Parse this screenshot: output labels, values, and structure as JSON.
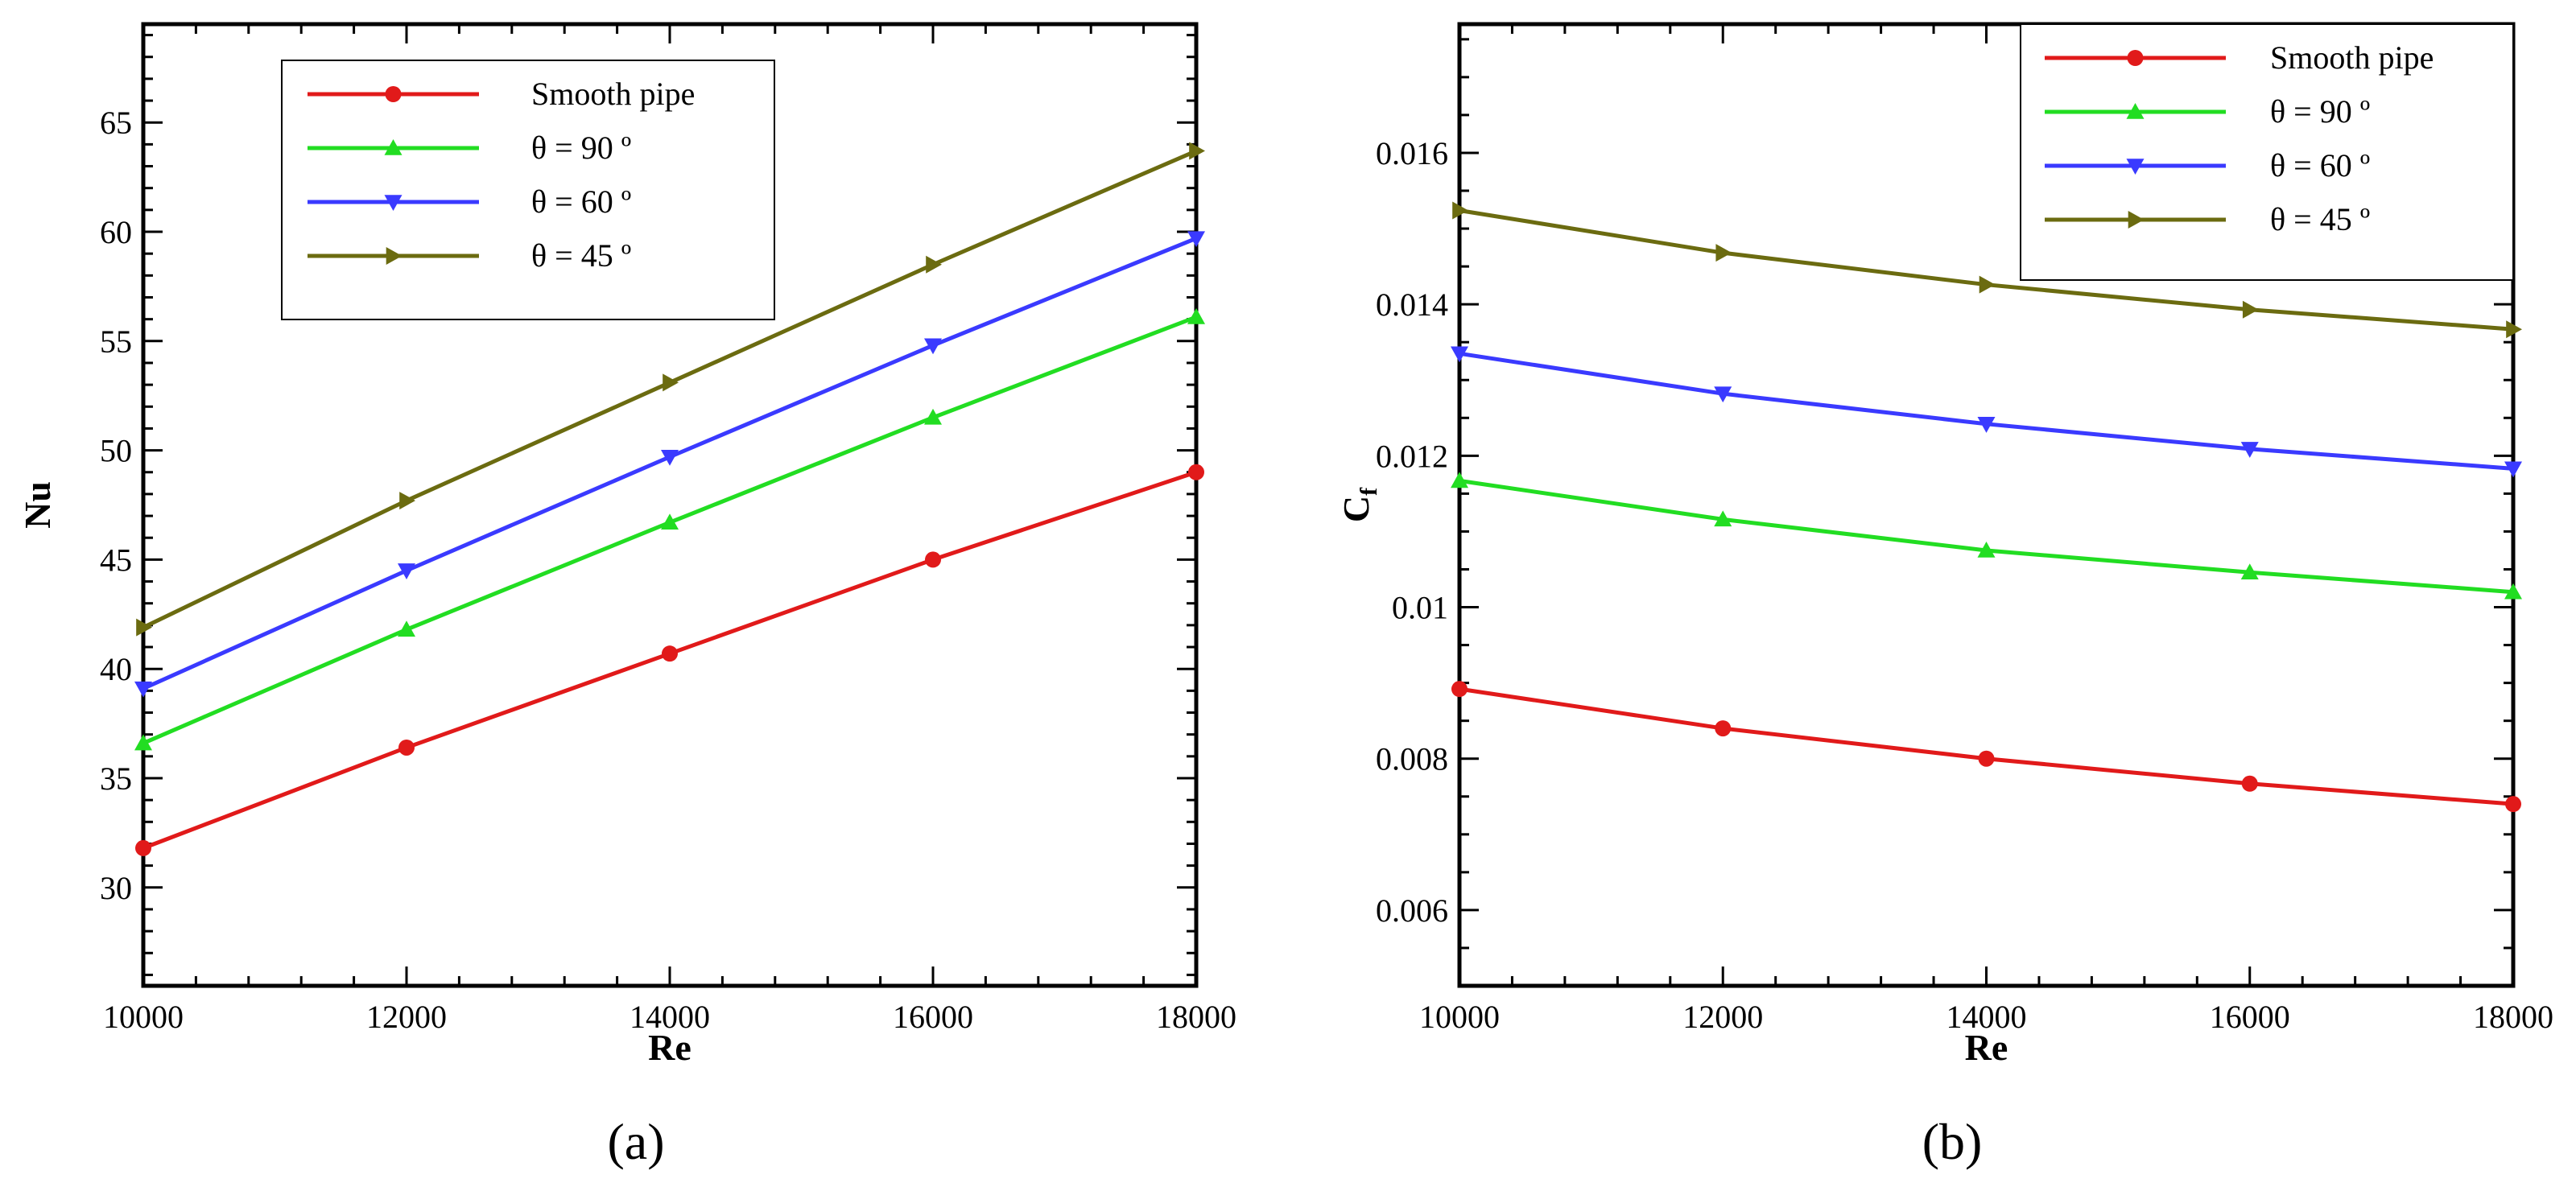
{
  "chart_data": [
    {
      "type": "line",
      "panel_label": "(a)",
      "x": [
        10000,
        12000,
        14000,
        16000,
        18000
      ],
      "xlabel": "Re",
      "ylabel": "Nu",
      "xlim": [
        10000,
        18000
      ],
      "ylim": [
        25.5,
        69.5
      ],
      "xticks": [
        10000,
        12000,
        14000,
        16000,
        18000
      ],
      "xtick_labels": [
        "10000",
        "12000",
        "14000",
        "16000",
        "18000"
      ],
      "yticks": [
        30,
        35,
        40,
        45,
        50,
        55,
        60,
        65
      ],
      "ytick_labels": [
        "30",
        "35",
        "40",
        "45",
        "50",
        "55",
        "60",
        "65"
      ],
      "legend_position": "top-center",
      "series": [
        {
          "name": "Smooth pipe",
          "color": "#e11a1a",
          "marker": "circle",
          "values": [
            31.8,
            36.4,
            40.7,
            45.0,
            49.0
          ]
        },
        {
          "name": "θ = 90 º",
          "color": "#22dd22",
          "marker": "triangle-up",
          "values": [
            36.6,
            41.8,
            46.7,
            51.5,
            56.1
          ]
        },
        {
          "name": "θ = 60 º",
          "color": "#3a3aff",
          "marker": "triangle-down",
          "values": [
            39.1,
            44.5,
            49.7,
            54.8,
            59.7
          ]
        },
        {
          "name": "θ = 45 º",
          "color": "#6b6b10",
          "marker": "triangle-right",
          "values": [
            41.9,
            47.7,
            53.1,
            58.5,
            63.7
          ]
        }
      ]
    },
    {
      "type": "line",
      "panel_label": "(b)",
      "x": [
        10000,
        12000,
        14000,
        16000,
        18000
      ],
      "xlabel": "Re",
      "ylabel": "C",
      "ylabel_subscript": "f",
      "xlim": [
        10000,
        18000
      ],
      "ylim": [
        0.005,
        0.0177
      ],
      "xticks": [
        10000,
        12000,
        14000,
        16000,
        18000
      ],
      "xtick_labels": [
        "10000",
        "12000",
        "14000",
        "16000",
        "18000"
      ],
      "yticks": [
        0.006,
        0.008,
        0.01,
        0.012,
        0.014,
        0.016
      ],
      "ytick_labels": [
        "0.006",
        "0.008",
        "0.01",
        "0.012",
        "0.014",
        "0.016"
      ],
      "legend_position": "top-right",
      "series": [
        {
          "name": "Smooth pipe",
          "color": "#e11a1a",
          "marker": "circle",
          "values": [
            0.00892,
            0.0084,
            0.008,
            0.00767,
            0.0074
          ]
        },
        {
          "name": "θ = 90 º",
          "color": "#22dd22",
          "marker": "triangle-up",
          "values": [
            0.01167,
            0.01116,
            0.01075,
            0.01046,
            0.0102
          ]
        },
        {
          "name": "θ = 60 º",
          "color": "#3a3aff",
          "marker": "triangle-down",
          "values": [
            0.01335,
            0.01282,
            0.01242,
            0.01209,
            0.01183
          ]
        },
        {
          "name": "θ = 45 º",
          "color": "#6b6b10",
          "marker": "triangle-right",
          "values": [
            0.01524,
            0.01468,
            0.01426,
            0.01393,
            0.01367
          ]
        }
      ]
    }
  ]
}
